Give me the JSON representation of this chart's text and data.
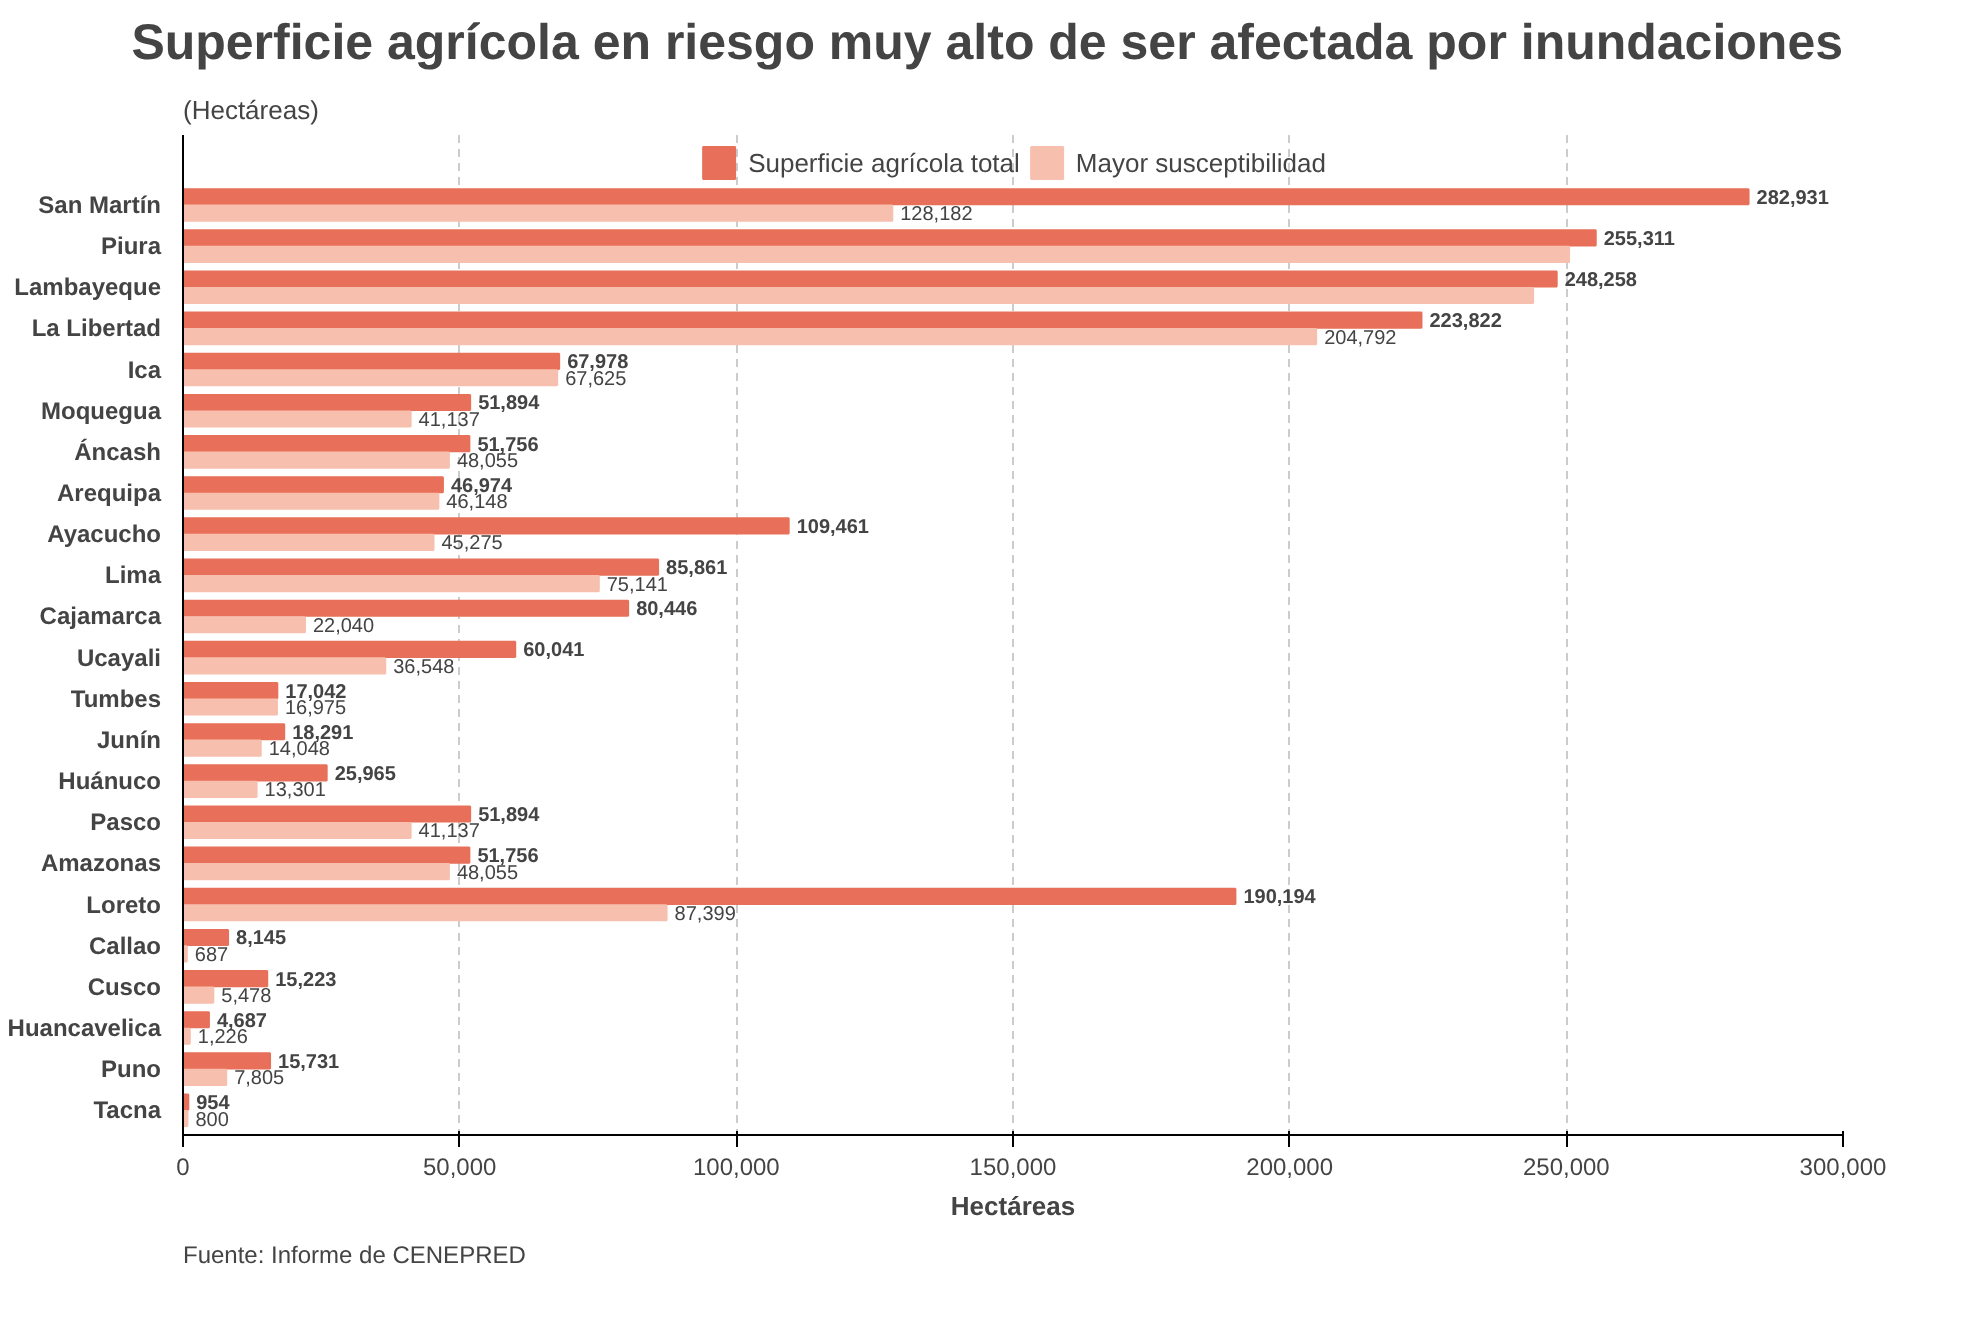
{
  "chart_data": {
    "type": "bar",
    "orientation": "horizontal",
    "title": "Superficie agrícola en riesgo muy alto de ser afectada por inundaciones",
    "subtitle": "(Hectáreas)",
    "xlabel": "Hectáreas",
    "categories": [
      "San Martín",
      "Piura",
      "Lambayeque",
      "La Libertad",
      "Ica",
      "Moquegua",
      "Áncash",
      "Arequipa",
      "Ayacucho",
      "Lima",
      "Cajamarca",
      "Ucayali",
      "Tumbes",
      "Junín",
      "Huánuco",
      "Pasco",
      "Amazonas",
      "Loreto",
      "Callao",
      "Cusco",
      "Huancavelica",
      "Puno",
      "Tacna"
    ],
    "series": [
      {
        "name": "Superficie agrícola total",
        "color": "#e8705a",
        "values": [
          282931,
          255311,
          248258,
          223822,
          67978,
          51894,
          51756,
          46974,
          109461,
          85861,
          80446,
          60041,
          17042,
          18291,
          25965,
          51894,
          51756,
          190194,
          8145,
          15223,
          4687,
          15731,
          954
        ],
        "value_labels": [
          "282,931",
          "255,311",
          "248,258",
          "223,822",
          "67,978",
          "51,894",
          "51,756",
          "46,974",
          "109,461",
          "85,861",
          "80,446",
          "60,041",
          "17,042",
          "18,291",
          "25,965",
          "51,894",
          "51,756",
          "190,194",
          "8,145",
          "15,223",
          "4,687",
          "15,731",
          "954"
        ]
      },
      {
        "name": "Mayor susceptibilidad",
        "color": "#f7bfae",
        "values": [
          128182,
          250500,
          244000,
          204792,
          67625,
          41137,
          48055,
          46148,
          45275,
          75141,
          22040,
          36548,
          16975,
          14048,
          13301,
          41137,
          48055,
          87399,
          687,
          5478,
          1226,
          7805,
          800
        ],
        "value_labels": [
          "128,182",
          null,
          null,
          "204,792",
          "67,625",
          "41,137",
          "48,055",
          "46,148",
          "45,275",
          "75,141",
          "22,040",
          "36,548",
          "16,975",
          "14,048",
          "13,301",
          "41,137",
          "48,055",
          "87,399",
          "687",
          "5,478",
          "1,226",
          "7,805",
          "800"
        ]
      }
    ],
    "xlim": [
      0,
      300000
    ],
    "xticks": [
      0,
      {
        "value": 50000,
        "label": "50,000"
      },
      {
        "value": 100000,
        "label": "100,000"
      },
      {
        "value": 150000,
        "label": "150,000"
      },
      {
        "value": 200000,
        "label": "200,000"
      },
      {
        "value": 250000,
        "label": "250,000"
      },
      {
        "value": 300000,
        "label": "300,000"
      }
    ],
    "grid": "x",
    "legend": "top",
    "annotations": [
      "Fuente: Informe de CENEPRED"
    ]
  }
}
